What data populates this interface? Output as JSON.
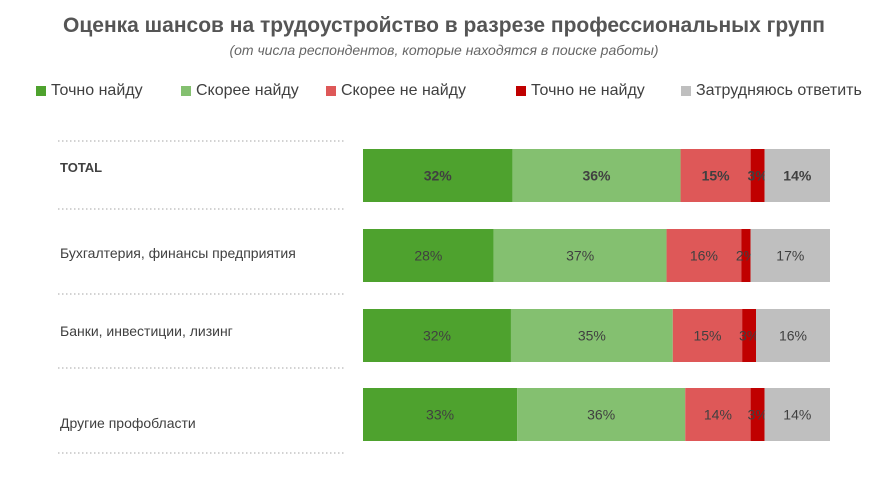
{
  "title": "Оценка шансов на трудоустройство в разрезе профессиональных групп",
  "subtitle": "(от числа респондентов, которые находятся в поиске работы)",
  "colors": {
    "background": "#ffffff",
    "text": "#404040",
    "separator": "#a6a6a6"
  },
  "chart_data": {
    "type": "bar",
    "orientation": "horizontal",
    "stacked": true,
    "percent_stacked": true,
    "categories": [
      "TOTAL",
      "Бухгалтерия, финансы предприятия",
      "Банки, инвестиции, лизинг",
      "Другие профобласти"
    ],
    "category_bold": [
      true,
      false,
      false,
      false
    ],
    "series": [
      {
        "name": "Точно найду",
        "color": "#4ea22e",
        "values": [
          32,
          28,
          32,
          33
        ]
      },
      {
        "name": "Скорее найду",
        "color": "#84c070",
        "values": [
          36,
          37,
          35,
          36
        ]
      },
      {
        "name": "Скорее не найду",
        "color": "#de5858",
        "values": [
          15,
          16,
          15,
          14
        ]
      },
      {
        "name": "Точно не найду",
        "color": "#c00000",
        "values": [
          3,
          2,
          3,
          3
        ]
      },
      {
        "name": "Затрудняюсь ответить",
        "color": "#bfbfbf",
        "values": [
          14,
          17,
          16,
          14
        ]
      }
    ],
    "value_suffix": "%",
    "legend_position": "top",
    "grid": false
  }
}
